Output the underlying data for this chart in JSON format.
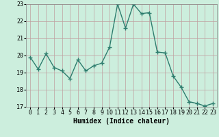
{
  "x": [
    0,
    1,
    2,
    3,
    4,
    5,
    6,
    7,
    8,
    9,
    10,
    11,
    12,
    13,
    14,
    15,
    16,
    17,
    18,
    19,
    20,
    21,
    22,
    23
  ],
  "y": [
    19.9,
    19.2,
    20.1,
    19.3,
    19.1,
    18.65,
    19.75,
    19.1,
    19.4,
    19.55,
    20.5,
    23.0,
    21.6,
    23.0,
    22.45,
    22.5,
    20.2,
    20.15,
    18.8,
    18.15,
    17.3,
    17.2,
    17.05,
    17.2
  ],
  "line_color": "#2e7d6e",
  "marker": "+",
  "markersize": 4,
  "linewidth": 1.0,
  "bg_color": "#cceedd",
  "grid_color": "#c0a0a0",
  "xlabel": "Humidex (Indice chaleur)",
  "xlabel_fontsize": 7,
  "tick_fontsize": 6,
  "xlim": [
    -0.5,
    23.5
  ],
  "ylim": [
    17,
    23
  ],
  "yticks": [
    17,
    18,
    19,
    20,
    21,
    22,
    23
  ],
  "xticks": [
    0,
    1,
    2,
    3,
    4,
    5,
    6,
    7,
    8,
    9,
    10,
    11,
    12,
    13,
    14,
    15,
    16,
    17,
    18,
    19,
    20,
    21,
    22,
    23
  ]
}
